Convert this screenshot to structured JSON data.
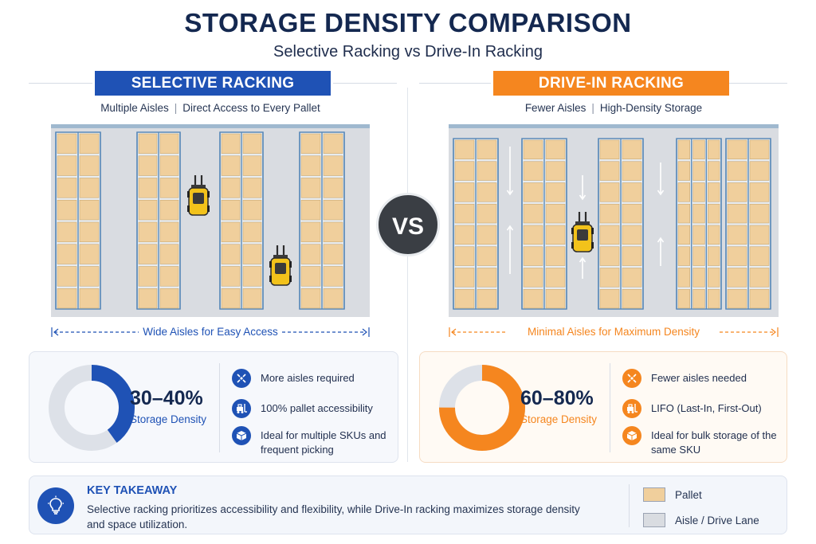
{
  "title": "STORAGE DENSITY COMPARISON",
  "subtitle": "Selective Racking vs Drive-In Racking",
  "vs": "VS",
  "left": {
    "banner": "SELECTIVE RACKING",
    "tag_a": "Multiple Aisles",
    "tag_b": "Direct Access to Every Pallet",
    "dimension": "Wide Aisles for Easy Access",
    "percent": "30–40%",
    "percent_value": 0.4,
    "percent_label": "Storage Density",
    "features": [
      {
        "icon": "aisles-icon",
        "text": "More aisles required"
      },
      {
        "icon": "forklift-icon",
        "text": "100% pallet accessibility"
      },
      {
        "icon": "box-icon",
        "text": "Ideal for multiple SKUs and frequent picking"
      }
    ]
  },
  "right": {
    "banner": "DRIVE-IN RACKING",
    "tag_a": "Fewer Aisles",
    "tag_b": "High-Density Storage",
    "dimension": "Minimal Aisles for Maximum Density",
    "percent": "60–80%",
    "percent_value": 0.75,
    "percent_label": "Storage Density",
    "features": [
      {
        "icon": "aisles-icon",
        "text": "Fewer aisles needed"
      },
      {
        "icon": "forklift-icon",
        "text": "LIFO (Last-In, First-Out)"
      },
      {
        "icon": "box-icon",
        "text": "Ideal for bulk storage of the same SKU"
      }
    ]
  },
  "takeaway": {
    "title": "KEY TAKEAWAY",
    "text": "Selective racking prioritizes accessibility and flexibility, while Drive-In racking maximizes storage density and space utilization.",
    "legend": [
      {
        "label": "Pallet",
        "color": "#f0cf9c"
      },
      {
        "label": "Aisle / Drive Lane",
        "color": "#d9dce1"
      }
    ]
  },
  "colors": {
    "blue": "#1f52b5",
    "orange": "#f5861f",
    "navy": "#142850",
    "pallet": "#f0cf9c",
    "aisle": "#d9dce1",
    "rack": "#5b8ab8"
  }
}
